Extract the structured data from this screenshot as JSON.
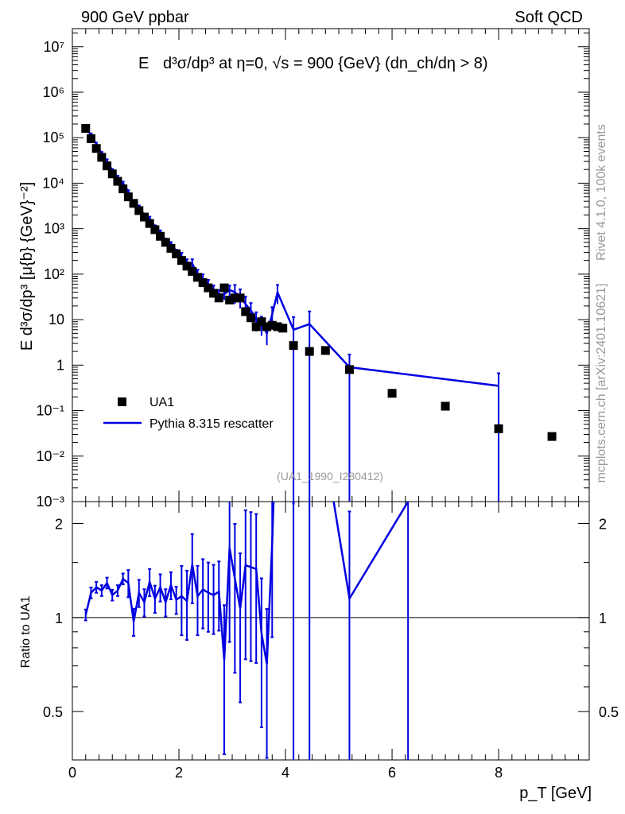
{
  "header": {
    "left": "900 GeV ppbar",
    "right": "Soft QCD"
  },
  "side_labels": {
    "rivet": "Rivet 4.1.0,  100k events",
    "mcplots": "mcplots.cern.ch [arXiv:2401.10621]"
  },
  "plot_title": {
    "prefix": "E",
    "formula": "d³σ/dp³ at η=0, √s = 900 {GeV} (dn_ch/dη > 8)"
  },
  "watermark": "(UA1_1990_I280412)",
  "colors": {
    "data": "#000000",
    "mc": "#0000e0"
  },
  "chart_data": [
    {
      "type": "scatter",
      "panel": "main",
      "ylabel": "E d³σ/dp³ [μ{b} {GeV}⁻²]",
      "yscale": "log",
      "ylim": [
        0.001,
        25000000
      ],
      "xlim": [
        0,
        9.7
      ],
      "y_tick_labels": [
        "10⁻³",
        "10⁻²",
        "10⁻¹",
        "1",
        "10",
        "10²",
        "10³",
        "10⁴",
        "10⁵",
        "10⁶",
        "10⁷"
      ],
      "legend_position": "lower-left",
      "series": [
        {
          "name": "UA1",
          "style": "markers",
          "x": [
            0.25,
            0.35,
            0.45,
            0.55,
            0.65,
            0.75,
            0.85,
            0.95,
            1.05,
            1.15,
            1.25,
            1.35,
            1.45,
            1.55,
            1.65,
            1.75,
            1.85,
            1.95,
            2.05,
            2.15,
            2.25,
            2.35,
            2.45,
            2.55,
            2.65,
            2.75,
            2.85,
            2.95,
            3.05,
            3.15,
            3.25,
            3.35,
            3.45,
            3.55,
            3.65,
            3.75,
            3.85,
            3.95,
            4.15,
            4.45,
            4.75,
            5.2,
            6.0,
            7.0,
            8.0,
            9.0
          ],
          "y": [
            160000,
            95000,
            58000,
            37000,
            24000,
            16000,
            11000,
            7500,
            5000,
            3600,
            2500,
            1800,
            1300,
            950,
            680,
            500,
            370,
            280,
            200,
            150,
            115,
            85,
            65,
            50,
            38,
            30,
            50,
            27,
            30,
            30,
            15,
            11,
            7,
            9,
            7,
            7.5,
            7,
            6.5,
            2.7,
            2.0,
            2.1,
            0.8,
            0.24,
            0.125,
            0.04,
            0.027
          ]
        },
        {
          "name": "Pythia 8.315 rescatter",
          "style": "line",
          "x": [
            0.25,
            0.35,
            0.45,
            0.55,
            0.65,
            0.75,
            0.85,
            0.95,
            1.05,
            1.15,
            1.25,
            1.35,
            1.45,
            1.55,
            1.65,
            1.75,
            1.85,
            1.95,
            2.05,
            2.15,
            2.25,
            2.35,
            2.45,
            2.55,
            2.65,
            2.75,
            2.85,
            2.95,
            3.05,
            3.15,
            3.25,
            3.35,
            3.45,
            3.55,
            3.65,
            3.75,
            3.85,
            4.15,
            4.45,
            5.2,
            8.0
          ],
          "y": [
            162000,
            115000,
            72000,
            45000,
            31000,
            19000,
            13500,
            10000,
            6500,
            3500,
            3000,
            2000,
            1700,
            1100,
            850,
            560,
            470,
            320,
            235,
            170,
            170,
            100,
            80,
            60,
            45,
            36,
            36,
            45,
            40,
            32,
            22,
            16,
            10,
            8,
            5,
            13,
            40,
            6,
            8,
            0.9,
            0.35
          ]
        }
      ]
    },
    {
      "type": "line",
      "panel": "ratio",
      "ylabel": "Ratio to UA1",
      "xlabel": "p_T [GeV]",
      "yscale": "log",
      "ylim": [
        0.35,
        2.35
      ],
      "xlim": [
        0,
        9.7
      ],
      "x_tick_labels": [
        "0",
        "2",
        "4",
        "6",
        "8"
      ],
      "y_tick_labels": [
        "0.5",
        "1",
        "2"
      ],
      "reference_line": 1,
      "series": [
        {
          "name": "Pythia 8.315 rescatter",
          "x": [
            0.25,
            0.35,
            0.45,
            0.55,
            0.65,
            0.75,
            0.85,
            0.95,
            1.05,
            1.15,
            1.25,
            1.35,
            1.45,
            1.55,
            1.65,
            1.75,
            1.85,
            1.95,
            2.05,
            2.15,
            2.25,
            2.35,
            2.45,
            2.55,
            2.65,
            2.75,
            2.85,
            2.95,
            3.05,
            3.15,
            3.25,
            3.35,
            3.45,
            3.55,
            3.65,
            3.75,
            3.85,
            4.15,
            4.45,
            5.2,
            6.3
          ],
          "y": [
            1.02,
            1.2,
            1.25,
            1.22,
            1.29,
            1.18,
            1.22,
            1.33,
            1.29,
            0.97,
            1.2,
            1.12,
            1.3,
            1.15,
            1.25,
            1.12,
            1.27,
            1.14,
            1.17,
            1.13,
            1.48,
            1.17,
            1.23,
            1.2,
            1.18,
            1.21,
            0.73,
            1.67,
            1.33,
            1.07,
            1.47,
            1.45,
            1.43,
            0.89,
            0.71,
            1.73,
            5.7,
            2.3,
            7.0,
            1.15,
            2.35
          ]
        }
      ]
    }
  ]
}
